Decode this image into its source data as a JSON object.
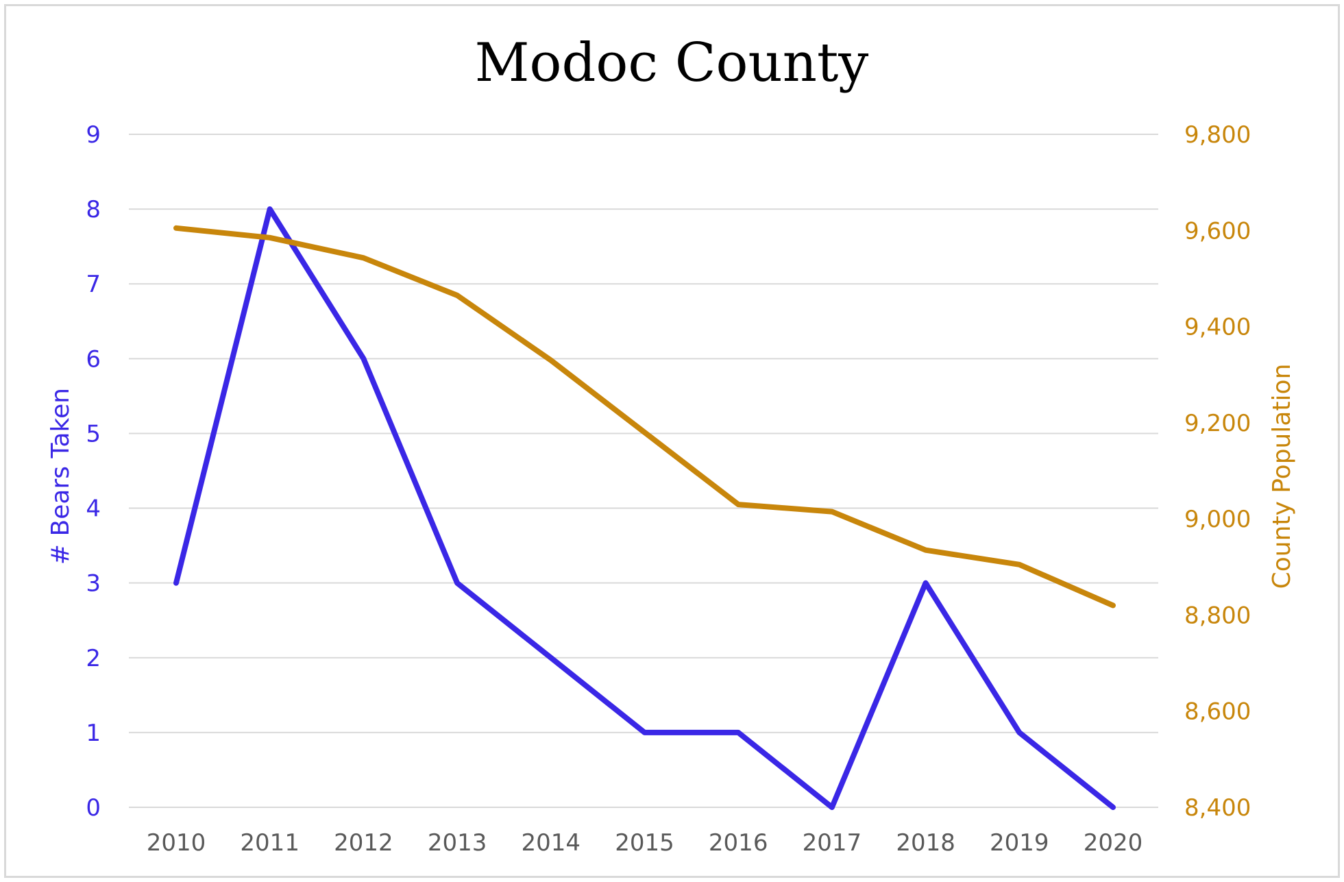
{
  "chart_data": {
    "type": "line",
    "title": "Modoc County",
    "x": [
      "2010",
      "2011",
      "2012",
      "2013",
      "2014",
      "2015",
      "2016",
      "2017",
      "2018",
      "2019",
      "2020"
    ],
    "y_left": {
      "label": "# Bears Taken",
      "ylim": [
        0,
        9
      ],
      "ticks": [
        "0",
        "1",
        "2",
        "3",
        "4",
        "5",
        "6",
        "7",
        "8",
        "9"
      ]
    },
    "y_right": {
      "label": "County Population",
      "ylim": [
        8400,
        9800
      ],
      "ticks": [
        "8,400",
        "8,600",
        "8,800",
        "9,000",
        "9,200",
        "9,400",
        "9,600",
        "9,800"
      ]
    },
    "series": [
      {
        "axis": "left",
        "color": "#3a27e6",
        "values": [
          3,
          8,
          6,
          3,
          2,
          1,
          1,
          0,
          3,
          1,
          0
        ]
      },
      {
        "axis": "right",
        "color": "#c8860b",
        "values": [
          9605,
          9585,
          9543,
          9465,
          9330,
          9180,
          9030,
          9015,
          8935,
          8905,
          8820
        ]
      }
    ],
    "grid": true
  }
}
